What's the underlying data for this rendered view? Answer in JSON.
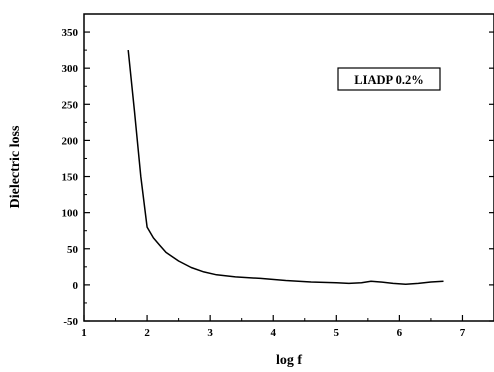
{
  "chart_data": {
    "type": "line",
    "title": "",
    "xlabel": "log f",
    "ylabel": "Dielectric loss",
    "xlim": [
      1,
      7.5
    ],
    "ylim": [
      -50,
      375
    ],
    "xticks": [
      1,
      2,
      3,
      4,
      5,
      6,
      7
    ],
    "yticks": [
      -50,
      0,
      50,
      100,
      150,
      200,
      250,
      300,
      350
    ],
    "grid": false,
    "legend_position": "top-right",
    "series": [
      {
        "name": "LIADP 0.2%",
        "color": "#000000",
        "x": [
          1.7,
          1.8,
          1.9,
          2.0,
          2.1,
          2.2,
          2.3,
          2.5,
          2.7,
          2.9,
          3.1,
          3.4,
          3.8,
          4.2,
          4.6,
          5.0,
          5.2,
          5.4,
          5.55,
          5.7,
          5.9,
          6.1,
          6.3,
          6.5,
          6.7
        ],
        "values": [
          325,
          240,
          150,
          80,
          65,
          55,
          45,
          33,
          24,
          18,
          14,
          11,
          9,
          6,
          4,
          3,
          2,
          3,
          5,
          4,
          2,
          1,
          2,
          4,
          5
        ]
      }
    ]
  }
}
